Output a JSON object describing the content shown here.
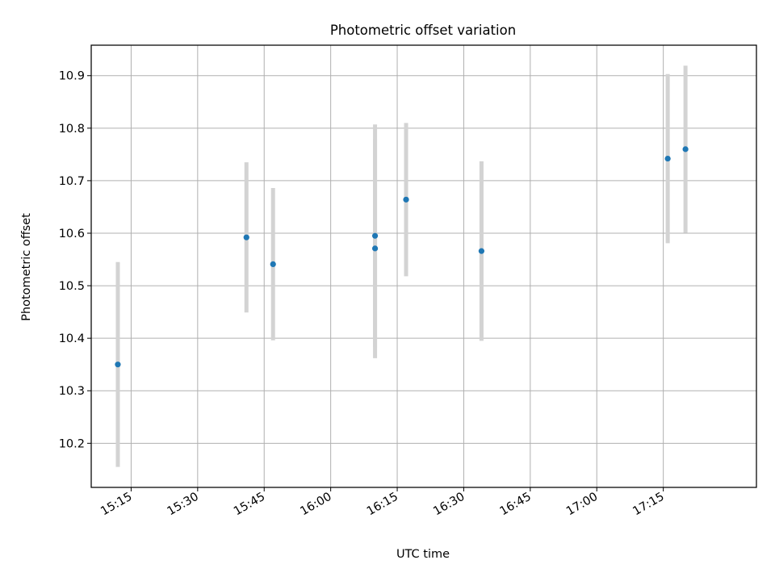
{
  "chart_data": {
    "type": "scatter",
    "title": "Photometric offset variation",
    "xlabel": "UTC time",
    "ylabel": "Photometric offset",
    "x_axis_kind": "time",
    "xlim": [
      "15:06",
      "17:36"
    ],
    "ylim": [
      10.116,
      10.958
    ],
    "x_ticks": [
      "15:15",
      "15:30",
      "15:45",
      "16:00",
      "16:15",
      "16:30",
      "16:45",
      "17:00",
      "17:15"
    ],
    "y_ticks": [
      "10.2",
      "10.3",
      "10.4",
      "10.5",
      "10.6",
      "10.7",
      "10.8",
      "10.9"
    ],
    "grid": true,
    "series": [
      {
        "marker_color": "#1f77b4",
        "errorbar_color": "#d3d3d3",
        "points": [
          {
            "x": "15:12",
            "y": 10.35,
            "err": 0.195
          },
          {
            "x": "15:41",
            "y": 10.592,
            "err": 0.143
          },
          {
            "x": "15:47",
            "y": 10.541,
            "err": 0.145
          },
          {
            "x": "16:10",
            "y": 10.595,
            "err": 0.212
          },
          {
            "x": "16:10",
            "y": 10.571,
            "err": 0.209
          },
          {
            "x": "16:17",
            "y": 10.664,
            "err": 0.146
          },
          {
            "x": "16:34",
            "y": 10.566,
            "err": 0.171
          },
          {
            "x": "17:16",
            "y": 10.742,
            "err": 0.161
          },
          {
            "x": "17:20",
            "y": 10.76,
            "err": 0.159
          }
        ]
      }
    ],
    "colors": {
      "grid": "#b0b0b0",
      "axes": "#000000",
      "marker": "#1f77b4",
      "errorbar": "#d3d3d3"
    }
  }
}
